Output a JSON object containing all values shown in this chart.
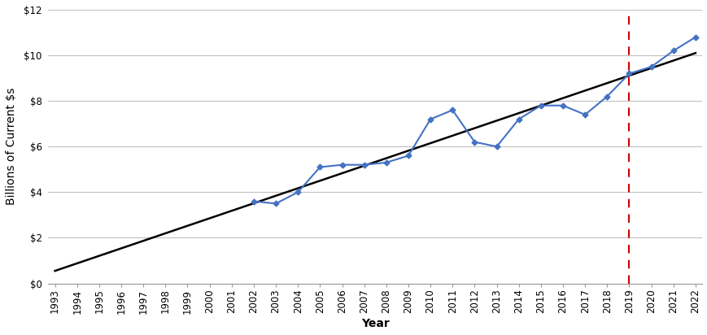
{
  "title": "",
  "xlabel": "Year",
  "ylabel": "Billions of Current $s",
  "years": [
    2002,
    2003,
    2004,
    2005,
    2006,
    2007,
    2008,
    2009,
    2010,
    2011,
    2012,
    2013,
    2014,
    2015,
    2016,
    2017,
    2018,
    2019,
    2020,
    2021,
    2022
  ],
  "values": [
    3.6,
    3.5,
    4.0,
    5.1,
    5.2,
    5.2,
    5.3,
    5.6,
    7.2,
    7.6,
    6.2,
    6.0,
    7.2,
    7.8,
    7.8,
    7.4,
    8.2,
    9.2,
    9.5,
    10.2,
    10.8
  ],
  "trendline_x": [
    1993,
    2022
  ],
  "trendline_y": [
    0.55,
    10.1
  ],
  "dashed_vline_x": 2019,
  "ylim": [
    0,
    12
  ],
  "yticks": [
    0,
    2,
    4,
    6,
    8,
    10,
    12
  ],
  "ytick_labels": [
    "$0",
    "$2",
    "$4",
    "$6",
    "$8",
    "$10",
    "$12"
  ],
  "xmin": 1993,
  "xmax": 2022,
  "line_color": "#4472C4",
  "marker_style": "D",
  "marker_size": 3.5,
  "trend_color": "#000000",
  "vline_color": "#CC0000",
  "grid_color": "#C0C0C0",
  "bg_color": "#FFFFFF",
  "axis_label_fontsize": 10,
  "tick_fontsize": 8.5
}
